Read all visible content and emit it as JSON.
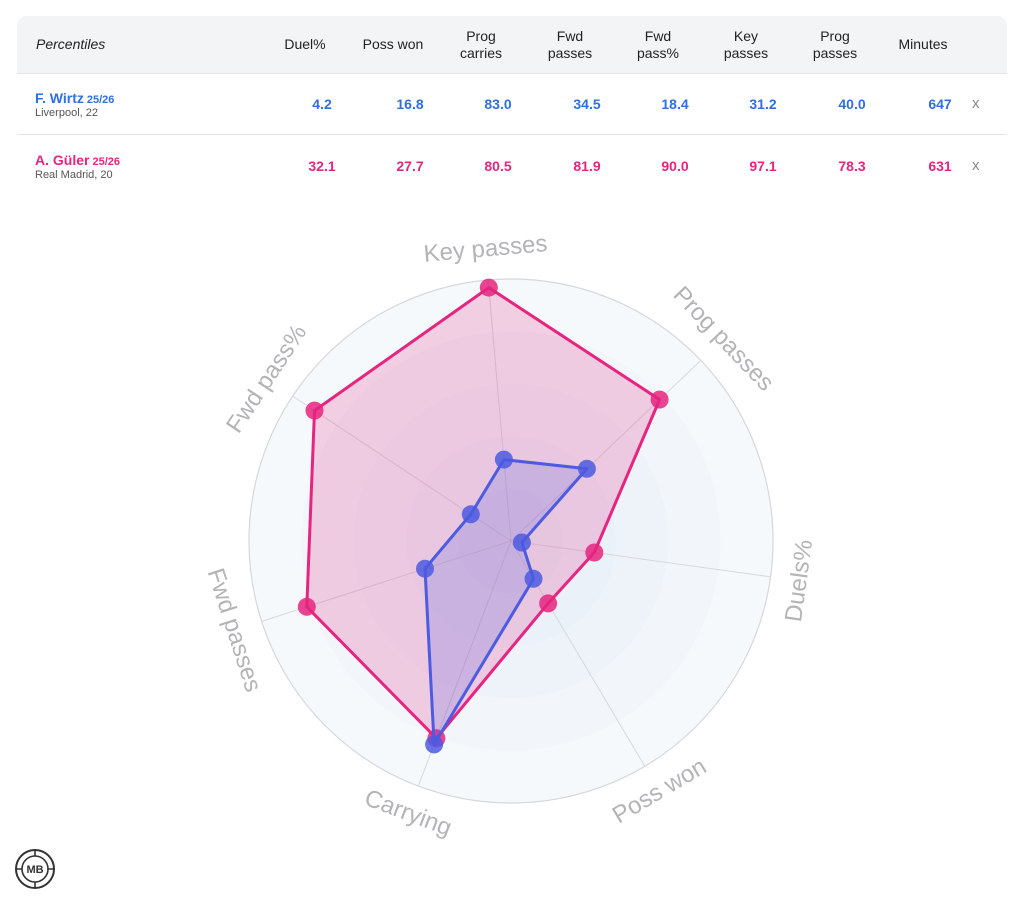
{
  "table": {
    "header_label": "Percentiles",
    "columns": [
      "Duel%",
      "Poss won",
      "Prog\ncarries",
      "Fwd\npasses",
      "Fwd\npass%",
      "Key\npasses",
      "Prog\npasses",
      "Minutes"
    ],
    "remove_label": "x",
    "players": [
      {
        "name": "F. Wirtz",
        "season": "25/26",
        "club": "Liverpool, 22",
        "color": "#2f6fe0",
        "values": [
          "4.2",
          "16.8",
          "83.0",
          "34.5",
          "18.4",
          "31.2",
          "40.0",
          "647"
        ]
      },
      {
        "name": "A. Güler",
        "season": "25/26",
        "club": "Real Madrid, 20",
        "color": "#e5257f",
        "values": [
          "32.1",
          "27.7",
          "80.5",
          "81.9",
          "90.0",
          "97.1",
          "78.3",
          "631"
        ]
      }
    ]
  },
  "chart_data": {
    "type": "radar",
    "axes": [
      "Key passes",
      "Prog passes",
      "Duels%",
      "Poss won",
      "Carrying",
      "Fwd passes",
      "Fwd pass%"
    ],
    "range": [
      0,
      100
    ],
    "series": [
      {
        "name": "A. Güler",
        "color": "#e5257f",
        "values": [
          97.1,
          78.3,
          32.1,
          27.7,
          80.5,
          81.9,
          90.0
        ]
      },
      {
        "name": "F. Wirtz",
        "color": "#4c5be0",
        "values": [
          31.2,
          40.0,
          4.2,
          16.8,
          83.0,
          34.5,
          18.4
        ]
      }
    ]
  }
}
